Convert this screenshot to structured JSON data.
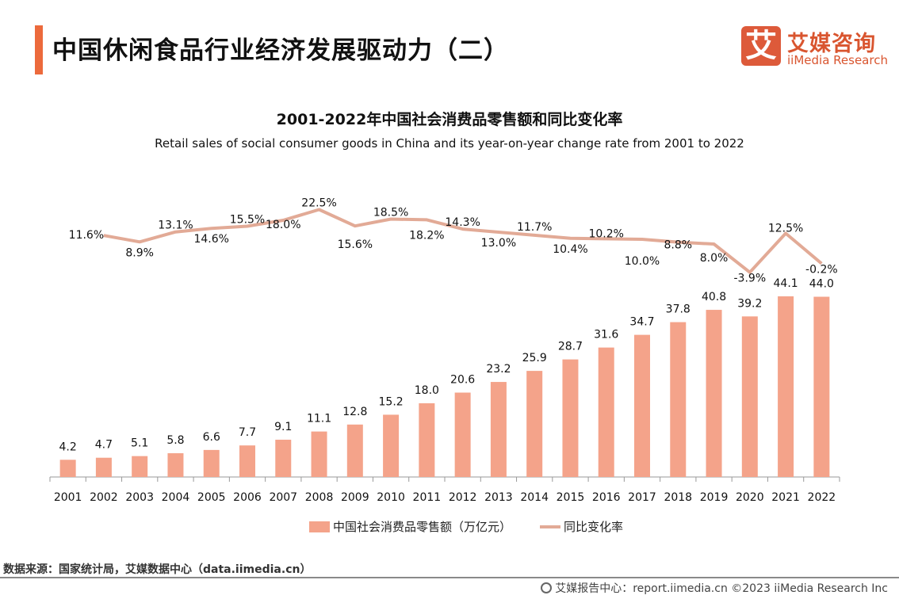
{
  "page": {
    "title": "中国休闲食品行业经济发展驱动力（二）",
    "logo": {
      "mark": "艾",
      "cn": "艾媒咨询",
      "en": "iiMedia Research"
    },
    "source": "数据来源：国家统计局，艾媒数据中心（data.iimedia.cn）",
    "footer": "艾媒报告中心：report.iimedia.cn   ©2023  iiMedia Research  Inc",
    "colors": {
      "accent": "#ec6a3c",
      "bar": "#f4a38a",
      "line": "#e2aa96",
      "brand": "#dd5a3a"
    }
  },
  "chart_data": {
    "type": "bar",
    "title": "2001-2022年中国社会消费品零售额和同比变化率",
    "subtitle": "Retail sales of social consumer goods in China and its year-on-year change rate from 2001 to 2022",
    "xlabel": "",
    "ylabel": "",
    "grid": false,
    "legend_position": "bottom",
    "categories": [
      "2001",
      "2002",
      "2003",
      "2004",
      "2005",
      "2006",
      "2007",
      "2008",
      "2009",
      "2010",
      "2011",
      "2012",
      "2013",
      "2014",
      "2015",
      "2016",
      "2017",
      "2018",
      "2019",
      "2020",
      "2021",
      "2022"
    ],
    "series": [
      {
        "name": "中国社会消费品零售额（万亿元）",
        "type": "bar",
        "values": [
          4.2,
          4.7,
          5.1,
          5.8,
          6.6,
          7.7,
          9.1,
          11.1,
          12.8,
          15.2,
          18.0,
          20.6,
          23.2,
          25.9,
          28.7,
          31.6,
          34.7,
          37.8,
          40.8,
          39.2,
          44.1,
          44.0
        ],
        "labels": [
          "4.2",
          "4.7",
          "5.1",
          "5.8",
          "6.6",
          "7.7",
          "9.1",
          "11.1",
          "12.8",
          "15.2",
          "18.0",
          "20.6",
          "23.2",
          "25.9",
          "28.7",
          "31.6",
          "34.7",
          "37.8",
          "40.8",
          "39.2",
          "44.1",
          "44.0"
        ]
      },
      {
        "name": "同比变化率",
        "type": "line",
        "values": [
          11.6,
          8.9,
          13.1,
          14.6,
          15.5,
          18.0,
          22.5,
          15.6,
          18.5,
          18.2,
          14.3,
          13.0,
          11.7,
          10.4,
          10.2,
          10.0,
          8.8,
          8.0,
          -3.9,
          12.5,
          -0.2
        ],
        "years": [
          "2002",
          "2003",
          "2004",
          "2005",
          "2006",
          "2007",
          "2008",
          "2009",
          "2010",
          "2011",
          "2012",
          "2013",
          "2014",
          "2015",
          "2016",
          "2017",
          "2018",
          "2019",
          "2020",
          "2021",
          "2022"
        ],
        "labels": [
          "11.6%",
          "8.9%",
          "13.1%",
          "14.6%",
          "15.5%",
          "18.0%",
          "22.5%",
          "15.6%",
          "18.5%",
          "18.2%",
          "14.3%",
          "13.0%",
          "11.7%",
          "10.4%",
          "10.2%",
          "10.0%",
          "8.8%",
          "8.0%",
          "-3.9%",
          "12.5%",
          "-0.2%"
        ]
      }
    ],
    "bar_ylim": [
      0,
      50
    ],
    "line_ylim": [
      -10,
      30
    ]
  }
}
